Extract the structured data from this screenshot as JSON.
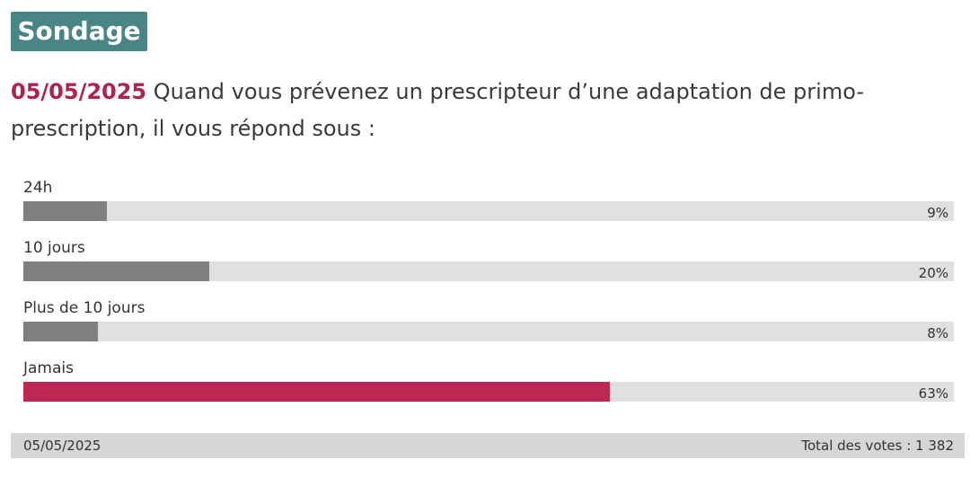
{
  "poll": {
    "badge": "Sondage",
    "date": "05/05/2025",
    "question": "Quand vous prévenez un prescripteur d’une adaptation de primo-prescription, il vous répond sous :",
    "options": [
      {
        "label": "24h",
        "percent": 9,
        "percent_label": "9%"
      },
      {
        "label": "10 jours",
        "percent": 20,
        "percent_label": "20%"
      },
      {
        "label": "Plus de 10 jours",
        "percent": 8,
        "percent_label": "8%"
      },
      {
        "label": "Jamais",
        "percent": 63,
        "percent_label": "63%"
      }
    ],
    "winner_index": 3,
    "footer_date": "05/05/2025",
    "footer_total": "Total des votes : 1 382"
  },
  "colors": {
    "badge_bg": "#4a8585",
    "date_accent": "#b3214a",
    "bar_default": "#808080",
    "bar_winner": "#bb2952",
    "track": "#e0e0e0",
    "footer_bg": "#d6d6d6"
  }
}
